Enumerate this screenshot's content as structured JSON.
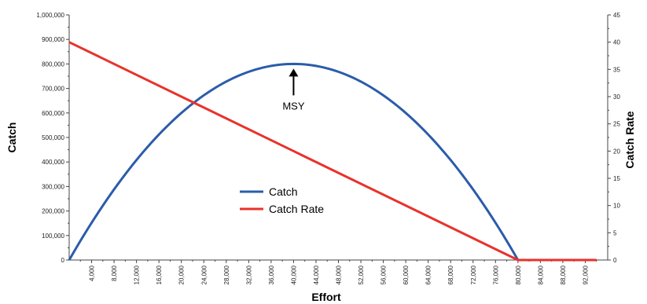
{
  "chart_data": {
    "type": "line",
    "xlabel": "Effort",
    "ylabel": "Catch",
    "ylabel_right": "Catch Rate",
    "xlim": [
      0,
      96000
    ],
    "ylim": [
      0,
      1000000
    ],
    "ylim_right": [
      0,
      45
    ],
    "x_ticks": [
      4000,
      8000,
      12000,
      16000,
      20000,
      24000,
      28000,
      32000,
      36000,
      40000,
      44000,
      48000,
      52000,
      56000,
      60000,
      64000,
      68000,
      72000,
      76000,
      80000,
      84000,
      88000,
      92000
    ],
    "x_tick_labels": [
      "4,000",
      "8,000",
      "12,000",
      "16,000",
      "20,000",
      "24,000",
      "28,000",
      "32,000",
      "36,000",
      "40,000",
      "44,000",
      "48,000",
      "52,000",
      "56,000",
      "60,000",
      "64,000",
      "68,000",
      "72,000",
      "76,000",
      "80,000",
      "84,000",
      "88,000",
      "92,000"
    ],
    "y_ticks": [
      0,
      100000,
      200000,
      300000,
      400000,
      500000,
      600000,
      700000,
      800000,
      900000,
      1000000
    ],
    "y_tick_labels": [
      "0",
      "100,000",
      "200,000",
      "300,000",
      "400,000",
      "500,000",
      "600,000",
      "700,000",
      "800,000",
      "900,000",
      "1,000,000"
    ],
    "y_right_ticks": [
      0,
      5,
      10,
      15,
      20,
      25,
      30,
      35,
      40,
      45
    ],
    "y_right_tick_labels": [
      "0",
      "5",
      "10",
      "15",
      "20",
      "25",
      "30",
      "35",
      "40",
      "45"
    ],
    "grid": false,
    "legend": "center",
    "series": [
      {
        "name": "Catch",
        "axis": "left",
        "color": "#2b5caa",
        "x": [
          0,
          4000,
          8000,
          12000,
          16000,
          20000,
          24000,
          28000,
          32000,
          36000,
          40000,
          44000,
          48000,
          52000,
          56000,
          60000,
          64000,
          68000,
          72000,
          76000,
          80000
        ],
        "y": [
          0,
          152000,
          288000,
          408000,
          512000,
          600000,
          672000,
          728000,
          768000,
          792000,
          800000,
          792000,
          768000,
          728000,
          672000,
          600000,
          512000,
          408000,
          288000,
          152000,
          0
        ]
      },
      {
        "name": "Catch Rate",
        "axis": "right",
        "color": "#e8322b",
        "x": [
          0,
          80000,
          84000,
          88000,
          92000,
          94000
        ],
        "y": [
          40,
          0,
          0,
          0,
          0,
          0
        ]
      }
    ],
    "annotations": [
      {
        "text": "MSY",
        "x": 40000,
        "y": 800000
      }
    ]
  }
}
